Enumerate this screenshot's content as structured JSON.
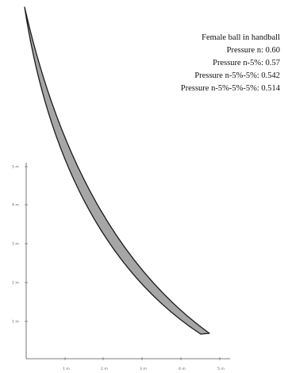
{
  "legend": {
    "title": "Female ball in handball",
    "lines": [
      "Pressure n: 0.60",
      "Pressure n-5%: 0.57",
      "Pressure n-5%-5%: 0.542",
      "Pressure n-5%-5%-5%: 0.514"
    ]
  },
  "axes": {
    "y_ticks": [
      "1 m",
      "2 m",
      "3 m",
      "4 m",
      "5 m"
    ],
    "x_ticks": [
      "1 m",
      "2 m",
      "3 m",
      "4 m",
      "5 m"
    ]
  },
  "colors": {
    "band_fill": "#a6a6a6",
    "band_stroke": "#1a1a1a",
    "axis": "#555555"
  }
}
